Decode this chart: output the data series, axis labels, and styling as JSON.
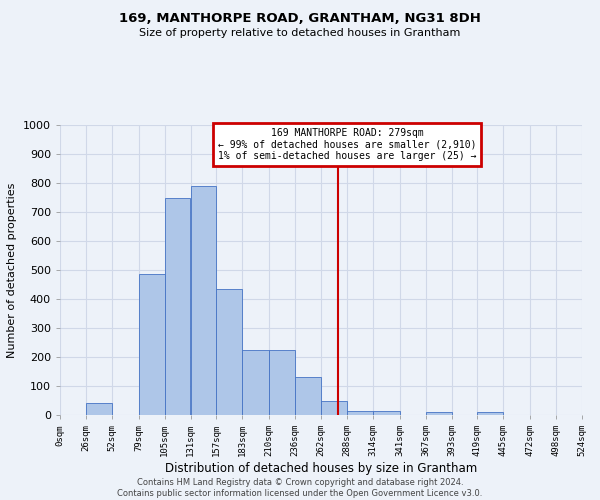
{
  "title": "169, MANTHORPE ROAD, GRANTHAM, NG31 8DH",
  "subtitle": "Size of property relative to detached houses in Grantham",
  "xlabel_bottom": "Distribution of detached houses by size in Grantham",
  "ylabel": "Number of detached properties",
  "footer_line1": "Contains HM Land Registry data © Crown copyright and database right 2024.",
  "footer_line2": "Contains public sector information licensed under the Open Government Licence v3.0.",
  "annotation_line1": "169 MANTHORPE ROAD: 279sqm",
  "annotation_line2": "← 99% of detached houses are smaller (2,910)",
  "annotation_line3": "1% of semi-detached houses are larger (25) →",
  "property_size": 279,
  "bar_edges": [
    0,
    26,
    52,
    79,
    105,
    131,
    157,
    183,
    210,
    236,
    262,
    288,
    314,
    341,
    367,
    393,
    419,
    445,
    472,
    498,
    524
  ],
  "bar_heights": [
    0,
    40,
    0,
    485,
    750,
    790,
    435,
    225,
    225,
    130,
    50,
    15,
    15,
    0,
    10,
    0,
    10,
    0,
    0,
    0
  ],
  "bar_color": "#aec6e8",
  "bar_edge_color": "#4472c4",
  "vline_color": "#cc0000",
  "vline_x": 279,
  "annotation_box_color": "#cc0000",
  "annotation_bg": "#ffffff",
  "grid_color": "#d0d8e8",
  "bg_color": "#edf2f9",
  "ylim": [
    0,
    1000
  ],
  "xlim": [
    0,
    524
  ],
  "tick_labels": [
    "0sqm",
    "26sqm",
    "52sqm",
    "79sqm",
    "105sqm",
    "131sqm",
    "157sqm",
    "183sqm",
    "210sqm",
    "236sqm",
    "262sqm",
    "288sqm",
    "314sqm",
    "341sqm",
    "367sqm",
    "393sqm",
    "419sqm",
    "445sqm",
    "472sqm",
    "498sqm",
    "524sqm"
  ],
  "tick_positions": [
    0,
    26,
    52,
    79,
    105,
    131,
    157,
    183,
    210,
    236,
    262,
    288,
    314,
    341,
    367,
    393,
    419,
    445,
    472,
    498,
    524
  ],
  "ytick_labels": [
    "0",
    "100",
    "200",
    "300",
    "400",
    "500",
    "600",
    "700",
    "800",
    "900",
    "1000"
  ],
  "ytick_positions": [
    0,
    100,
    200,
    300,
    400,
    500,
    600,
    700,
    800,
    900,
    1000
  ]
}
